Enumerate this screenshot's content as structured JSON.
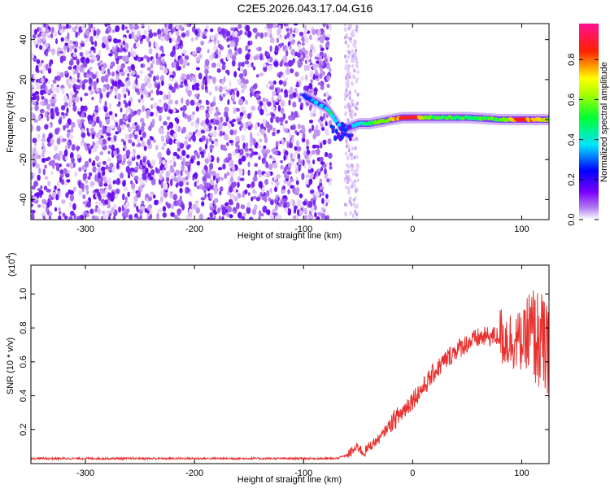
{
  "title": "C2E5.2026.043.17.04.G16",
  "chart_data": [
    {
      "type": "heatmap",
      "xlabel": "Height of straight line (km)",
      "ylabel": "Frequency (Hz)",
      "xlim": [
        -350,
        125
      ],
      "ylim": [
        -50,
        48
      ],
      "xticks": [
        -300,
        -200,
        -100,
        0,
        100
      ],
      "yticks": [
        -40,
        -20,
        0,
        20,
        40
      ],
      "colorbar": {
        "label": "Normalized spectral amplitude",
        "range": [
          0,
          0.98
        ],
        "ticks": [
          0.0,
          0.2,
          0.4,
          0.6,
          0.8
        ],
        "colors": [
          "#ffffff",
          "#8b00ff",
          "#0000ff",
          "#00ffff",
          "#00ff00",
          "#ffff00",
          "#ff0000",
          "#ff0080"
        ]
      },
      "noise_region_x": [
        -350,
        -75
      ],
      "signal_track": {
        "x": [
          -100,
          -90,
          -80,
          -75,
          -70,
          -65,
          -60,
          -55,
          -50,
          -40,
          -30,
          -20,
          -10,
          0,
          20,
          50,
          80,
          100,
          125
        ],
        "frequency": [
          12,
          9,
          6,
          3,
          -1,
          -5,
          -4,
          -3,
          -2,
          -2,
          -1,
          0,
          1,
          1,
          1,
          1,
          0,
          0,
          0
        ],
        "amplitude": [
          0.3,
          0.4,
          0.4,
          0.5,
          0.45,
          0.35,
          0.4,
          0.45,
          0.5,
          0.55,
          0.65,
          0.8,
          0.9,
          0.9,
          0.6,
          0.55,
          0.6,
          0.9,
          0.7
        ]
      }
    },
    {
      "type": "line",
      "xlabel": "Height of straight line (km)",
      "ylabel": "SNR (10 * v/v)",
      "yscale_label": "(x10",
      "yscale_exp": "4",
      "xlim": [
        -350,
        125
      ],
      "ylim": [
        0,
        1.17
      ],
      "xticks": [
        -300,
        -200,
        -100,
        0,
        100
      ],
      "yticks": [
        0.2,
        0.4,
        0.6,
        0.8,
        1.0
      ],
      "series": [
        {
          "color": "#e8312f",
          "x": [
            -350,
            -300,
            -200,
            -100,
            -70,
            -60,
            -50,
            -45,
            -40,
            -30,
            -20,
            -10,
            0,
            10,
            20,
            30,
            40,
            50,
            60,
            70,
            80,
            90,
            100,
            110,
            120,
            125
          ],
          "values": [
            0.03,
            0.03,
            0.03,
            0.03,
            0.03,
            0.05,
            0.1,
            0.06,
            0.1,
            0.15,
            0.24,
            0.3,
            0.38,
            0.45,
            0.54,
            0.61,
            0.67,
            0.71,
            0.74,
            0.75,
            0.75,
            0.73,
            0.72,
            0.76,
            0.7,
            0.6
          ]
        }
      ]
    }
  ]
}
